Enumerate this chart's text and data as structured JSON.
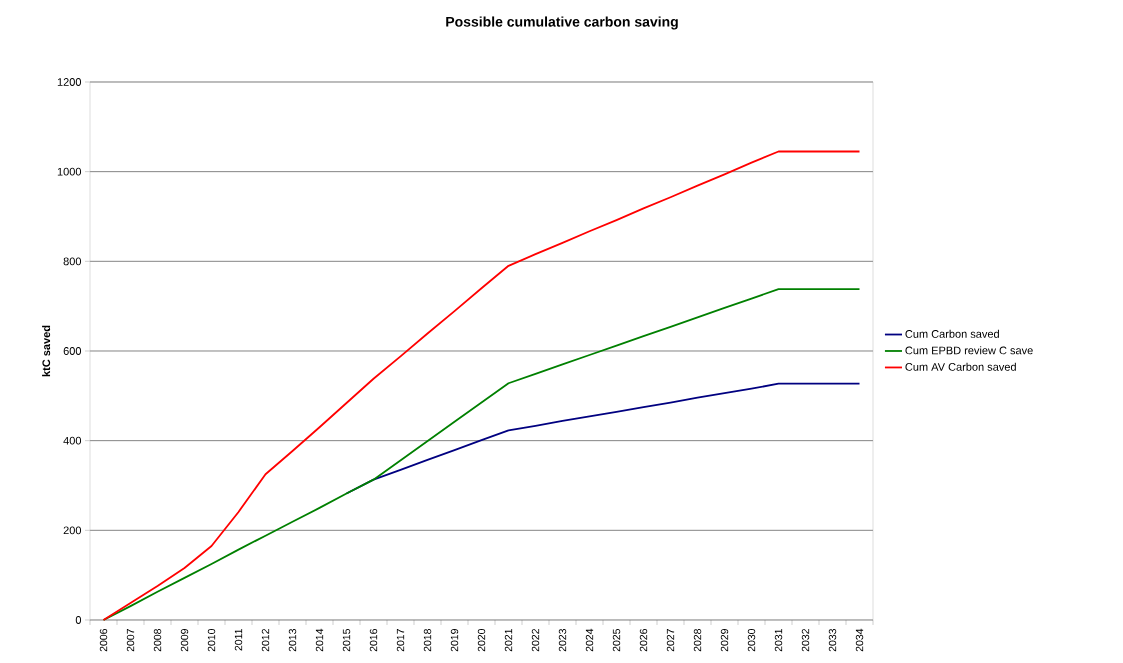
{
  "chart_data": {
    "type": "line",
    "title": "Possible cumulative carbon saving",
    "ylabel": "ktC saved",
    "categories": [
      "2006",
      "2007",
      "2008",
      "2009",
      "2010",
      "2011",
      "2012",
      "2013",
      "2014",
      "2015",
      "2016",
      "2017",
      "2018",
      "2019",
      "2020",
      "2021",
      "2022",
      "2023",
      "2024",
      "2025",
      "2026",
      "2027",
      "2028",
      "2029",
      "2030",
      "2031",
      "2032",
      "2033",
      "2034"
    ],
    "series": [
      {
        "name": "Cum Carbon saved",
        "color": "#000080",
        "values": [
          null,
          null,
          null,
          null,
          null,
          null,
          null,
          null,
          null,
          282,
          313,
          335,
          357,
          379,
          401,
          423,
          433,
          444,
          454,
          464,
          475,
          485,
          496,
          506,
          516,
          527,
          527,
          527,
          527
        ]
      },
      {
        "name": "Cum EPBD review C save",
        "color": "#008000",
        "values": [
          0,
          31,
          63,
          94,
          125,
          157,
          188,
          219,
          250,
          282,
          313,
          356,
          399,
          442,
          485,
          528,
          549,
          570,
          591,
          612,
          633,
          654,
          675,
          696,
          717,
          738,
          738,
          738,
          738
        ]
      },
      {
        "name": "Cum AV Carbon saved",
        "color": "#ff0000",
        "values": [
          0,
          38,
          76,
          116,
          165,
          241,
          325,
          377,
          430,
          484,
          538,
          588,
          639,
          689,
          740,
          790,
          816,
          841,
          867,
          892,
          918,
          943,
          969,
          994,
          1020,
          1045,
          1045,
          1045,
          1045
        ]
      }
    ],
    "ylim": [
      0,
      1200
    ],
    "yticks": [
      0,
      200,
      400,
      600,
      800,
      1000,
      1200
    ],
    "grid": "y",
    "legend": "right",
    "marker": "none",
    "line_style": "solid"
  }
}
